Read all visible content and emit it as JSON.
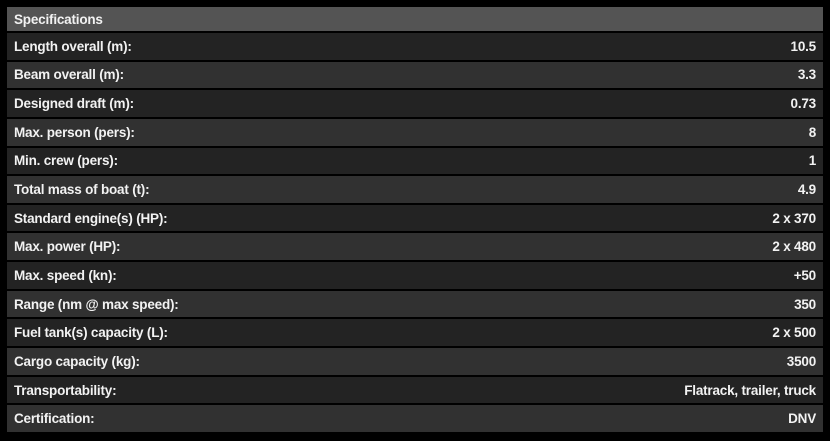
{
  "title": "Specifications",
  "table": {
    "rows": [
      {
        "label": "Length overall (m):",
        "value": "10.5"
      },
      {
        "label": "Beam overall (m):",
        "value": "3.3"
      },
      {
        "label": "Designed draft (m):",
        "value": "0.73"
      },
      {
        "label": "Max. person (pers):",
        "value": "8"
      },
      {
        "label": "Min. crew (pers):",
        "value": "1"
      },
      {
        "label": "Total mass of boat (t):",
        "value": "4.9"
      },
      {
        "label": "Standard engine(s) (HP):",
        "value": "2 x 370"
      },
      {
        "label": "Max. power (HP):",
        "value": "2 x 480"
      },
      {
        "label": "Max. speed (kn):",
        "value": "+50"
      },
      {
        "label": "Range (nm @ max speed):",
        "value": "350"
      },
      {
        "label": "Fuel tank(s) capacity (L):",
        "value": "2 x 500"
      },
      {
        "label": "Cargo capacity (kg):",
        "value": "3500"
      },
      {
        "label": "Transportability:",
        "value": "Flatrack, trailer, truck"
      },
      {
        "label": "Certification:",
        "value": "DNV"
      }
    ]
  },
  "colors": {
    "border": "#000000",
    "header_bg": "#545454",
    "row_dark": "#232323",
    "row_light": "#313131",
    "text": "#f2f2f2"
  }
}
